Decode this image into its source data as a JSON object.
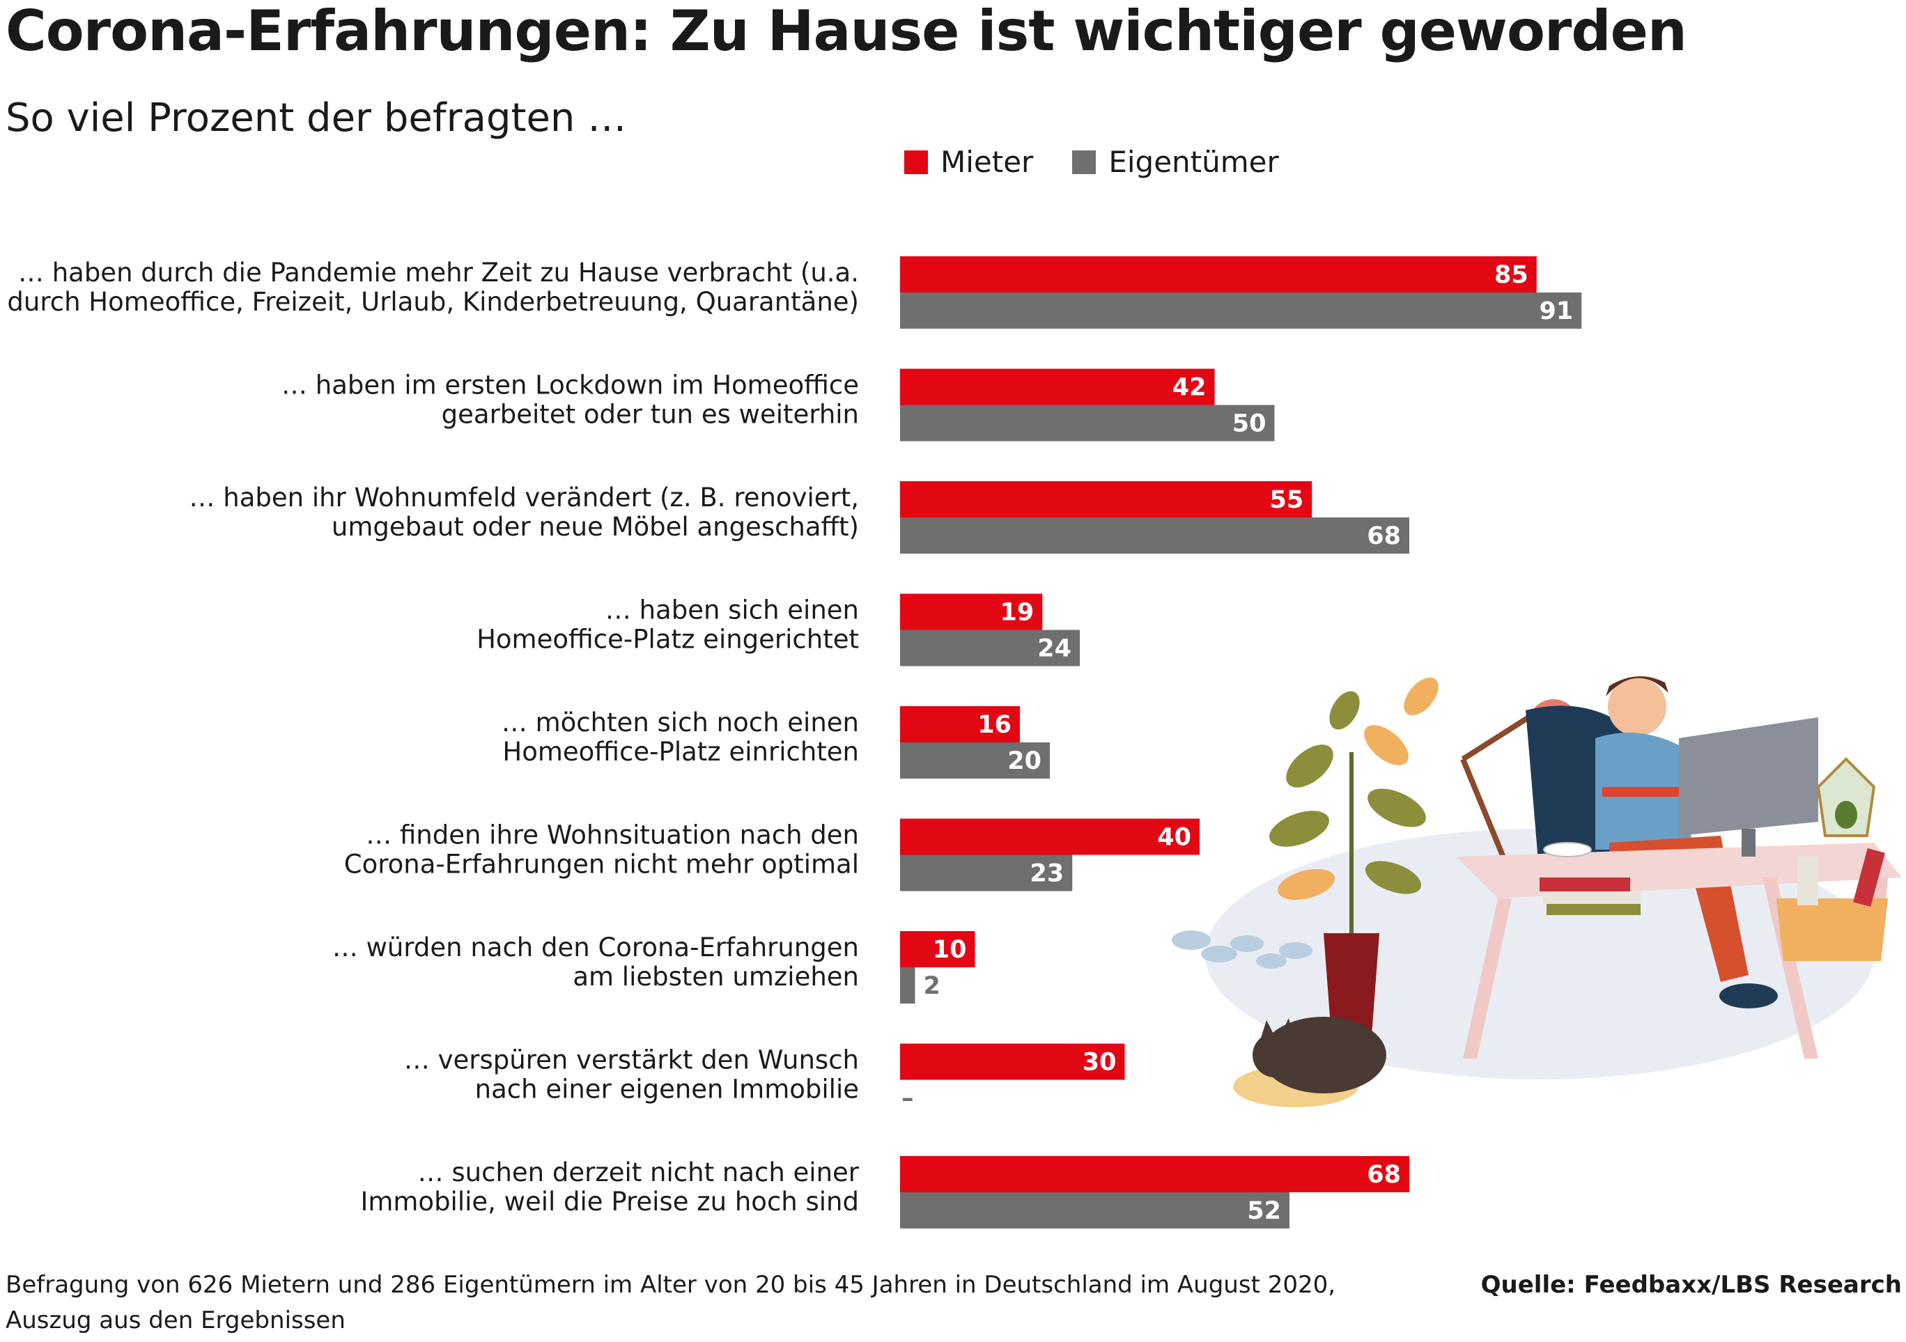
{
  "title": "Corona-Erfahrungen: Zu Hause ist wichtiger geworden",
  "subtitle": "So viel Prozent der befragten …",
  "footnote": {
    "line1": "Befragung von 626 Mietern und 286 Eigentümern im Alter von 20 bis 45 Jahren in Deutschland im August 2020,",
    "line2": "Auszug aus den Ergebnissen"
  },
  "source": "Quelle: Feedbaxx/LBS Research",
  "colors": {
    "mieter": "#e30613",
    "eigentuemer": "#706f6f",
    "text": "#1a1a1a"
  },
  "chart_data": {
    "type": "bar",
    "orientation": "horizontal",
    "xlim": [
      0,
      100
    ],
    "categories": [
      [
        "… haben durch die Pandemie mehr Zeit zu Hause verbracht (u.a.",
        "durch Homeoffice, Freizeit, Urlaub, Kinderbetreuung, Quarantäne)"
      ],
      [
        "… haben im ersten Lockdown im Homeoffice",
        "gearbeitet oder tun es weiterhin"
      ],
      [
        "… haben ihr Wohnumfeld verändert (z. B. renoviert,",
        "umgebaut oder neue Möbel angeschafft)"
      ],
      [
        "… haben sich einen",
        "Homeoffice-Platz eingerichtet"
      ],
      [
        "… möchten sich noch einen",
        "Homeoffice-Platz einrichten"
      ],
      [
        "… finden ihre Wohnsituation nach den",
        "Corona-Erfahrungen nicht mehr optimal"
      ],
      [
        "… würden nach den Corona-Erfahrungen",
        "am liebsten umziehen"
      ],
      [
        "… verspüren verstärkt den Wunsch",
        "nach einer eigenen Immobilie"
      ],
      [
        "… suchen derzeit nicht nach einer",
        "Immobilie, weil die Preise zu hoch sind"
      ]
    ],
    "series": [
      {
        "name": "Mieter",
        "color": "#e30613",
        "values": [
          85,
          42,
          55,
          19,
          16,
          40,
          10,
          30,
          68
        ]
      },
      {
        "name": "Eigentümer",
        "color": "#706f6f",
        "values": [
          91,
          50,
          68,
          24,
          20,
          23,
          2,
          null,
          52
        ]
      }
    ],
    "missing_value_label": "–",
    "legend_position": "top-right"
  }
}
